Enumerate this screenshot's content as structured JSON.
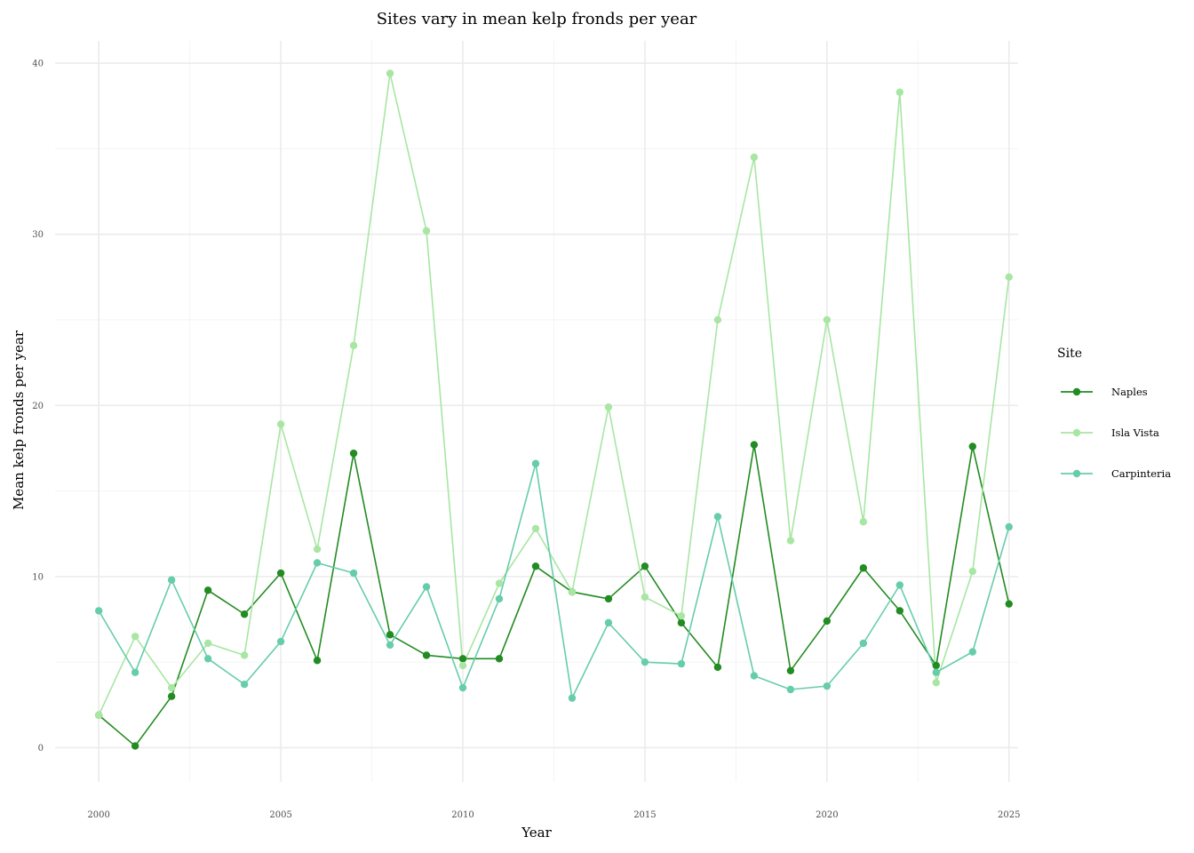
{
  "chart_data": {
    "type": "line",
    "title": "Sites vary in mean kelp fronds per year",
    "xlabel": "Year",
    "ylabel": "Mean kelp fronds per year",
    "x": [
      2000,
      2001,
      2002,
      2003,
      2004,
      2005,
      2006,
      2007,
      2008,
      2009,
      2010,
      2011,
      2012,
      2013,
      2014,
      2015,
      2016,
      2017,
      2018,
      2019,
      2020,
      2021,
      2022,
      2023,
      2024,
      2025
    ],
    "xlim": [
      1998.8,
      2025.25
    ],
    "ylim": [
      -2,
      41.3
    ],
    "x_ticks": [
      2000,
      2005,
      2010,
      2015,
      2020,
      2025
    ],
    "x_tick_labels": [
      "2000",
      "2005",
      "2010",
      "2015",
      "2020",
      "2025"
    ],
    "y_ticks": [
      0,
      10,
      20,
      30,
      40
    ],
    "y_tick_labels": [
      "0",
      "10",
      "20",
      "30",
      "40"
    ],
    "grid": true,
    "legend": {
      "title": "Site",
      "position": "right"
    },
    "series": [
      {
        "name": "Naples",
        "color": "#228b22",
        "values": [
          1.9,
          0.1,
          3.0,
          9.2,
          7.8,
          10.2,
          5.1,
          17.2,
          6.6,
          5.4,
          5.2,
          5.2,
          10.6,
          9.1,
          8.7,
          10.6,
          7.3,
          4.7,
          17.7,
          4.5,
          7.4,
          10.5,
          8.0,
          4.8,
          17.6,
          8.4
        ]
      },
      {
        "name": "Isla Vista",
        "color": "#a8e6a3",
        "values": [
          1.9,
          6.5,
          3.5,
          6.1,
          5.4,
          18.9,
          11.6,
          23.5,
          39.4,
          30.2,
          4.8,
          9.6,
          12.8,
          9.1,
          19.9,
          8.8,
          7.7,
          25.0,
          34.5,
          12.1,
          25.0,
          13.2,
          38.3,
          3.8,
          10.3,
          27.5
        ]
      },
      {
        "name": "Carpinteria",
        "color": "#66cdaa",
        "values": [
          8.0,
          4.4,
          9.8,
          5.2,
          3.7,
          6.2,
          10.8,
          10.2,
          6.0,
          9.4,
          3.5,
          8.7,
          16.6,
          2.9,
          7.3,
          5.0,
          4.9,
          13.5,
          4.2,
          3.4,
          3.6,
          6.1,
          9.5,
          4.4,
          5.6,
          12.9
        ]
      }
    ]
  }
}
